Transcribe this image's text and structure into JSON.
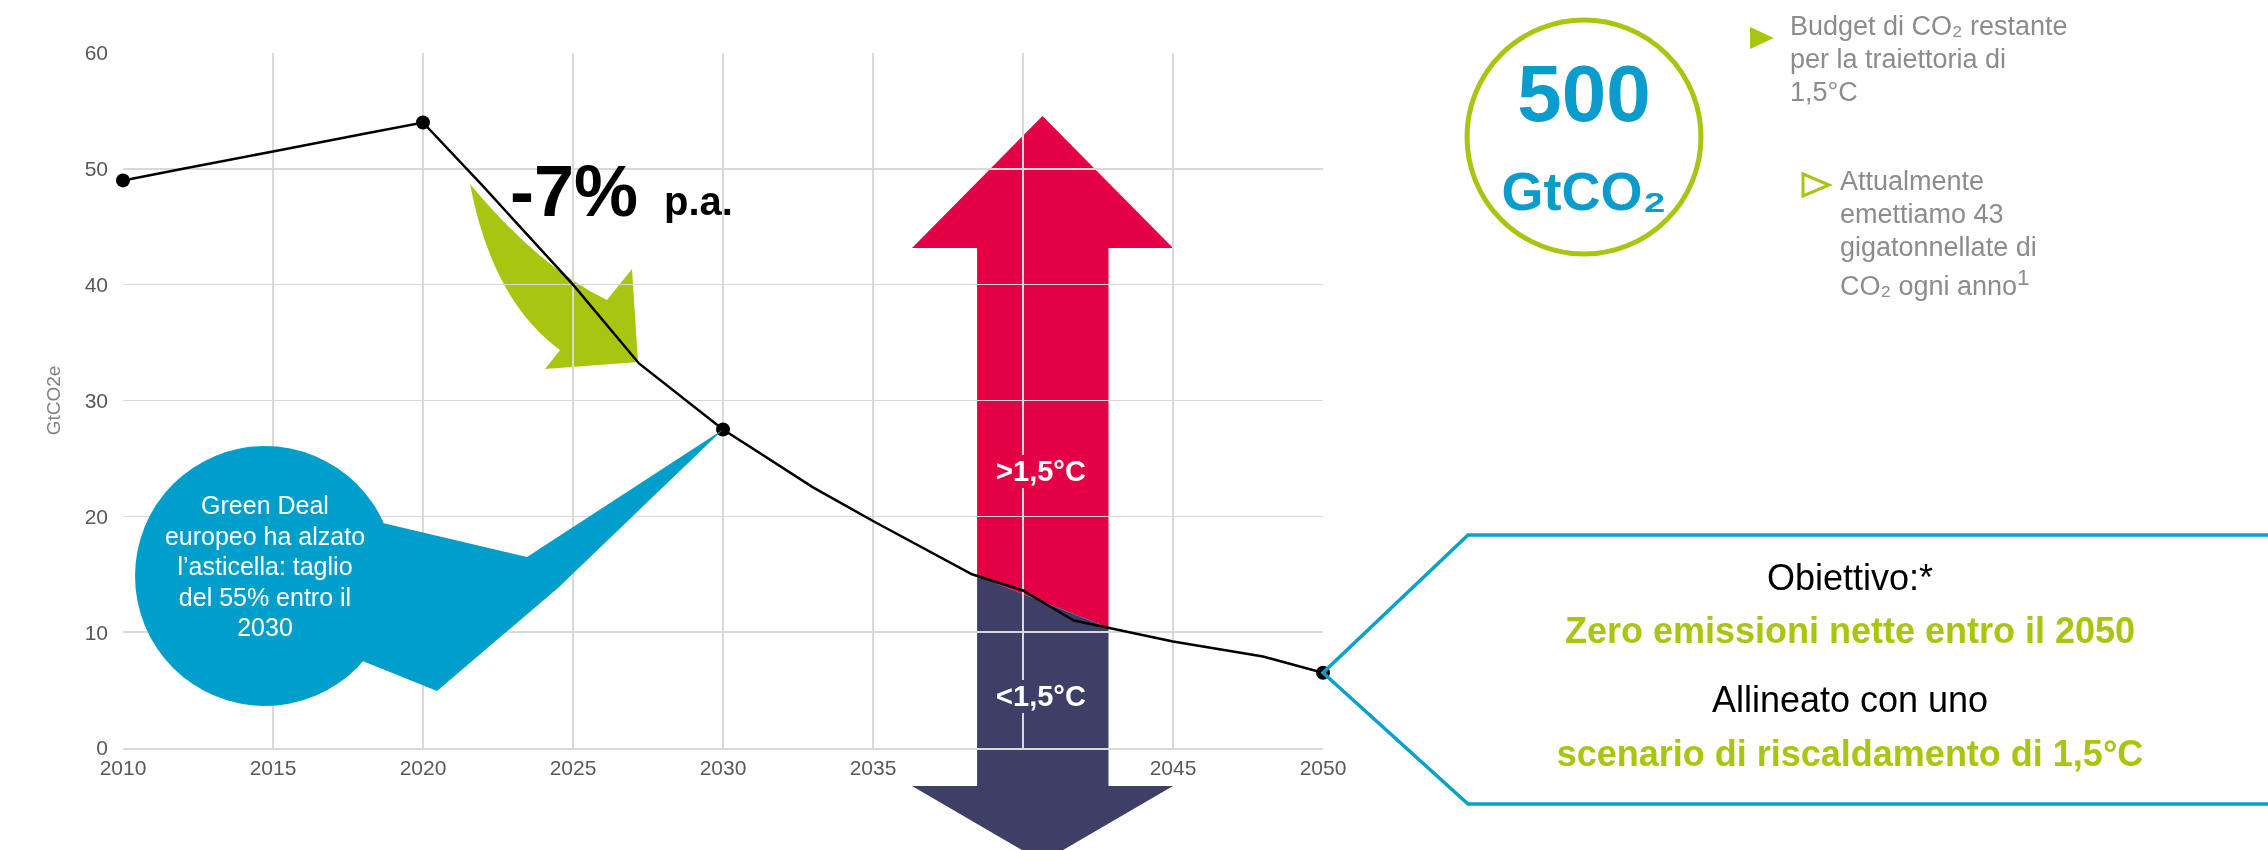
{
  "chart_data": {
    "type": "line",
    "ylabel": "GtCO2e",
    "xlim": [
      2010,
      2050
    ],
    "xticks": [
      2010,
      2015,
      2020,
      2025,
      2030,
      2035,
      {
        "value": 2040,
        "label": null
      },
      2045,
      2050
    ],
    "ylim": [
      0,
      60
    ],
    "yticks": [
      0,
      10,
      20,
      30,
      40,
      50,
      60
    ],
    "grid": true,
    "series": [
      {
        "color": "#000000",
        "marker": "none",
        "x": [
          2010,
          2012,
          2015,
          2018,
          2020,
          2022,
          2025,
          2027.2,
          2030,
          2033,
          2035,
          2038.3,
          2040,
          2041.7,
          2045,
          2048,
          2050
        ],
        "values": [
          49,
          50,
          51.5,
          53,
          54,
          48.5,
          40,
          33.2,
          27.5,
          22.5,
          19.6,
          15,
          13.6,
          11,
          9.2,
          7.9,
          6.5
        ]
      },
      {
        "type": "scatter",
        "color": "#000000",
        "marker": "circle",
        "x": [
          2010,
          2020,
          2030,
          2050
        ],
        "values": [
          49,
          54,
          27.5,
          6.5
        ]
      }
    ],
    "annotations": [
      "-7%",
      "p.a.",
      ">1,5°C",
      "<1,5°C",
      "Green Deal europeo ha alzato l’asticella: taglio del 55% entro il 2030",
      "500",
      "GtCO₂",
      "Budget di CO₂ restante per la traiettoria di 1,5°C",
      "Attualmente emettiamo 43 gigatonnellate di CO₂ ogni anno$^{1}$",
      "Obiettivo:*",
      "Zero emissioni nette entro il  2050",
      "Allineato con uno",
      "scenario di riscaldamento di 1,5°C"
    ]
  }
}
